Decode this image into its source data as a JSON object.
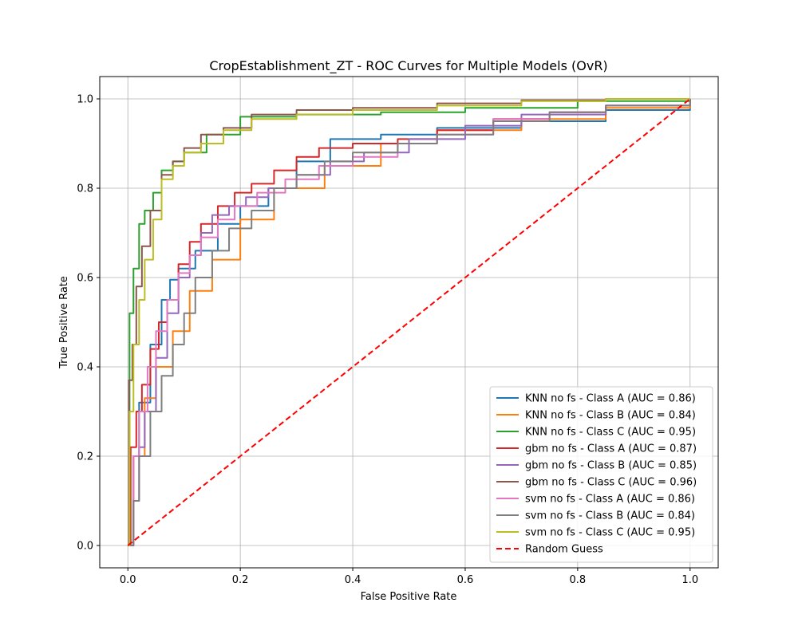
{
  "chart_data": {
    "type": "line",
    "title": "CropEstablishment_ZT - ROC Curves for Multiple Models (OvR)",
    "xlabel": "False Positive Rate",
    "ylabel": "True Positive Rate",
    "xlim": [
      -0.05,
      1.05
    ],
    "ylim": [
      -0.05,
      1.05
    ],
    "xticks": [
      "0.0",
      "0.2",
      "0.4",
      "0.6",
      "0.8",
      "1.0"
    ],
    "yticks": [
      "0.0",
      "0.2",
      "0.4",
      "0.6",
      "0.8",
      "1.0"
    ],
    "grid": true,
    "legend_position": "lower-right",
    "series": [
      {
        "name": "KNN no fs - Class A (AUC = 0.86)",
        "color": "#1f77b4",
        "dash": false,
        "x": [
          0,
          0.01,
          0.02,
          0.04,
          0.06,
          0.075,
          0.09,
          0.12,
          0.16,
          0.2,
          0.25,
          0.3,
          0.36,
          0.45,
          0.55,
          0.7,
          0.85,
          1.0
        ],
        "y": [
          0,
          0.2,
          0.32,
          0.45,
          0.55,
          0.595,
          0.62,
          0.66,
          0.72,
          0.76,
          0.8,
          0.86,
          0.91,
          0.92,
          0.935,
          0.95,
          0.975,
          1.0
        ]
      },
      {
        "name": "KNN no fs - Class B (AUC = 0.84)",
        "color": "#ff7f0e",
        "dash": false,
        "x": [
          0,
          0.01,
          0.03,
          0.05,
          0.08,
          0.11,
          0.15,
          0.2,
          0.26,
          0.35,
          0.45,
          0.55,
          0.7,
          0.85,
          1.0
        ],
        "y": [
          0,
          0.2,
          0.33,
          0.4,
          0.48,
          0.57,
          0.64,
          0.73,
          0.8,
          0.85,
          0.9,
          0.93,
          0.955,
          0.98,
          1.0
        ]
      },
      {
        "name": "KNN no fs - Class C (AUC = 0.95)",
        "color": "#2ca02c",
        "dash": false,
        "x": [
          0,
          0.003,
          0.01,
          0.02,
          0.03,
          0.045,
          0.06,
          0.08,
          0.1,
          0.14,
          0.2,
          0.3,
          0.45,
          0.6,
          0.8,
          1.0
        ],
        "y": [
          0,
          0.52,
          0.62,
          0.72,
          0.75,
          0.79,
          0.84,
          0.86,
          0.88,
          0.92,
          0.96,
          0.965,
          0.97,
          0.98,
          0.995,
          1.0
        ]
      },
      {
        "name": "gbm no fs - Class A (AUC = 0.87)",
        "color": "#d62728",
        "dash": false,
        "x": [
          0,
          0.005,
          0.015,
          0.025,
          0.04,
          0.055,
          0.07,
          0.09,
          0.11,
          0.13,
          0.16,
          0.19,
          0.22,
          0.26,
          0.3,
          0.34,
          0.4,
          0.48,
          0.55,
          0.65,
          0.75,
          0.85,
          1.0
        ],
        "y": [
          0,
          0.22,
          0.3,
          0.36,
          0.44,
          0.5,
          0.55,
          0.63,
          0.68,
          0.72,
          0.76,
          0.79,
          0.81,
          0.84,
          0.87,
          0.89,
          0.9,
          0.91,
          0.93,
          0.955,
          0.97,
          0.985,
          1.0
        ]
      },
      {
        "name": "gbm no fs - Class B (AUC = 0.85)",
        "color": "#9467bd",
        "dash": false,
        "x": [
          0,
          0.01,
          0.02,
          0.03,
          0.05,
          0.07,
          0.09,
          0.11,
          0.13,
          0.15,
          0.18,
          0.21,
          0.25,
          0.3,
          0.36,
          0.42,
          0.5,
          0.6,
          0.7,
          0.85,
          1.0
        ],
        "y": [
          0,
          0.1,
          0.22,
          0.3,
          0.42,
          0.52,
          0.6,
          0.65,
          0.7,
          0.74,
          0.76,
          0.78,
          0.8,
          0.83,
          0.86,
          0.88,
          0.91,
          0.94,
          0.965,
          0.985,
          1.0
        ]
      },
      {
        "name": "gbm no fs - Class C (AUC = 0.96)",
        "color": "#8c564b",
        "dash": false,
        "x": [
          0,
          0.002,
          0.008,
          0.015,
          0.025,
          0.04,
          0.06,
          0.08,
          0.1,
          0.13,
          0.17,
          0.22,
          0.3,
          0.4,
          0.55,
          0.7,
          0.85,
          1.0
        ],
        "y": [
          0,
          0.37,
          0.45,
          0.58,
          0.67,
          0.75,
          0.83,
          0.86,
          0.89,
          0.92,
          0.935,
          0.965,
          0.975,
          0.98,
          0.99,
          0.997,
          1.0,
          1.0
        ]
      },
      {
        "name": "svm no fs - Class A (AUC = 0.86)",
        "color": "#e377c2",
        "dash": false,
        "x": [
          0,
          0.01,
          0.02,
          0.035,
          0.05,
          0.07,
          0.09,
          0.11,
          0.13,
          0.16,
          0.19,
          0.23,
          0.28,
          0.34,
          0.4,
          0.48,
          0.55,
          0.65,
          0.75,
          0.85,
          1.0
        ],
        "y": [
          0,
          0.2,
          0.3,
          0.4,
          0.48,
          0.55,
          0.61,
          0.65,
          0.69,
          0.73,
          0.76,
          0.79,
          0.82,
          0.85,
          0.87,
          0.9,
          0.92,
          0.955,
          0.97,
          0.985,
          1.0
        ]
      },
      {
        "name": "svm no fs - Class B (AUC = 0.84)",
        "color": "#7f7f7f",
        "dash": false,
        "x": [
          0,
          0.01,
          0.02,
          0.04,
          0.06,
          0.08,
          0.1,
          0.12,
          0.15,
          0.18,
          0.22,
          0.26,
          0.3,
          0.35,
          0.4,
          0.48,
          0.55,
          0.65,
          0.75,
          0.85,
          1.0
        ],
        "y": [
          0,
          0.1,
          0.2,
          0.3,
          0.38,
          0.45,
          0.52,
          0.6,
          0.66,
          0.71,
          0.75,
          0.8,
          0.83,
          0.86,
          0.88,
          0.9,
          0.92,
          0.95,
          0.97,
          0.985,
          1.0
        ]
      },
      {
        "name": "svm no fs - Class C (AUC = 0.95)",
        "color": "#bcbd22",
        "dash": false,
        "x": [
          0,
          0.003,
          0.01,
          0.02,
          0.03,
          0.045,
          0.06,
          0.08,
          0.1,
          0.13,
          0.17,
          0.22,
          0.3,
          0.4,
          0.55,
          0.7,
          0.85,
          1.0
        ],
        "y": [
          0,
          0.3,
          0.45,
          0.55,
          0.64,
          0.73,
          0.82,
          0.85,
          0.88,
          0.9,
          0.93,
          0.955,
          0.965,
          0.975,
          0.985,
          0.995,
          1.0,
          1.0
        ]
      },
      {
        "name": "Random Guess",
        "color": "#ff0000",
        "dash": true,
        "x": [
          0,
          1
        ],
        "y": [
          0,
          1
        ]
      }
    ]
  }
}
